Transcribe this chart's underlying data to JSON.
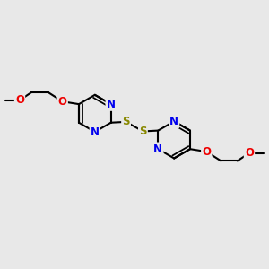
{
  "bg_color": "#e8e8e8",
  "bond_color": "#000000",
  "bond_width": 1.5,
  "N_color": "#0000ee",
  "S_color": "#888800",
  "O_color": "#ee0000",
  "font_size_atom": 8.5,
  "figsize": [
    3.0,
    3.0
  ],
  "dpi": 100,
  "xlim": [
    0,
    10
  ],
  "ylim": [
    0,
    10
  ]
}
